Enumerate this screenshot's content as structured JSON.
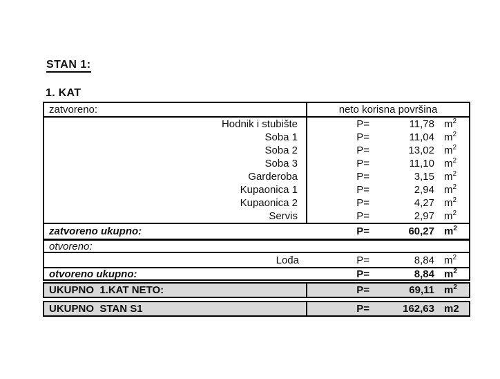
{
  "page": {
    "apartment_title": "STAN 1:",
    "floor_title": "1. KAT"
  },
  "colors": {
    "total_row_bg": "#d9d9d9",
    "border": "#000000",
    "text": "#111111"
  },
  "table": {
    "header": {
      "left": "zatvoreno:",
      "right": "neto korisna površina"
    },
    "closed_rows": [
      {
        "name": "Hodnik i stubište",
        "p": "P=",
        "value": "11,78",
        "unit": "m^2"
      },
      {
        "name": "Soba 1",
        "p": "P=",
        "value": "11,04",
        "unit": "m^2"
      },
      {
        "name": "Soba 2",
        "p": "P=",
        "value": "13,02",
        "unit": "m^2"
      },
      {
        "name": "Soba 3",
        "p": "P=",
        "value": "11,10",
        "unit": "m^2"
      },
      {
        "name": "Garderoba",
        "p": "P=",
        "value": "3,15",
        "unit": "m^2"
      },
      {
        "name": "Kupaonica 1",
        "p": "P=",
        "value": "2,94",
        "unit": "m^2"
      },
      {
        "name": "Kupaonica 2",
        "p": "P=",
        "value": "4,27",
        "unit": "m^2"
      },
      {
        "name": "Servis",
        "p": "P=",
        "value": "2,97",
        "unit": "m^2"
      }
    ],
    "closed_total": {
      "label": "zatvoreno ukupno:",
      "p": "P=",
      "value": "60,27",
      "unit": "m^2"
    },
    "open_header": "otvoreno:",
    "open_rows": [
      {
        "name": "Lođa",
        "p": "P=",
        "value": "8,84",
        "unit": "m^2"
      }
    ],
    "open_total": {
      "label": "otvoreno ukupno:",
      "p": "P=",
      "value": "8,84",
      "unit": "m^2"
    },
    "floor_total": {
      "label": "UKUPNO  1.KAT NETO:",
      "p": "P=",
      "value": "69,11",
      "unit": "m^2"
    },
    "grand_total": {
      "label": "UKUPNO  STAN S1",
      "p": "P=",
      "value": "162,63",
      "unit": "m2"
    }
  }
}
